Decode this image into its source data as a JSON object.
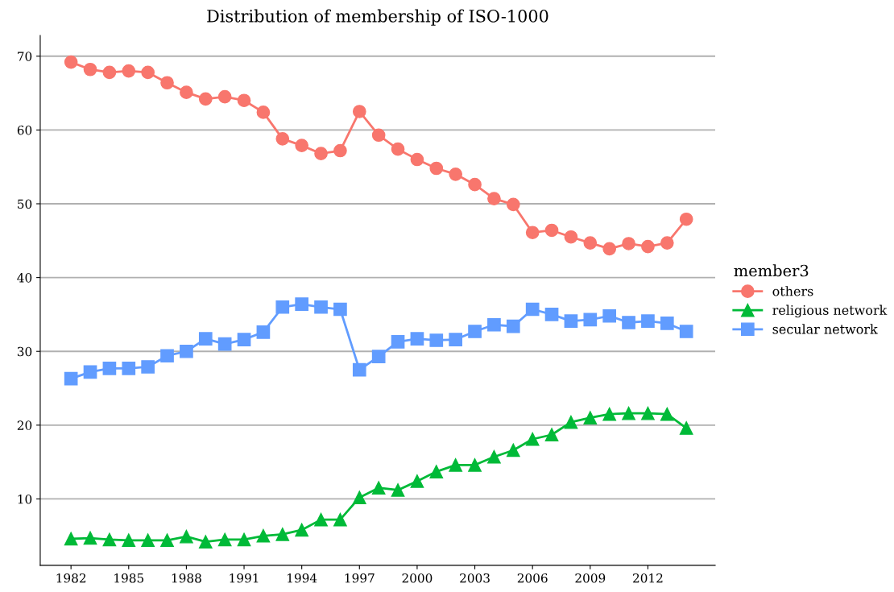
{
  "chart_data": {
    "type": "line",
    "title": "Distribution of membership of ISO-1000",
    "legend_title": "member3",
    "x": [
      1982,
      1983,
      1984,
      1985,
      1986,
      1987,
      1988,
      1989,
      1990,
      1991,
      1992,
      1993,
      1994,
      1995,
      1996,
      1997,
      1998,
      1999,
      2000,
      2001,
      2002,
      2003,
      2004,
      2005,
      2006,
      2007,
      2008,
      2009,
      2010,
      2011,
      2012,
      2013,
      2014
    ],
    "series": [
      {
        "name": "others",
        "color": "#f8766d",
        "marker": "circle",
        "values": [
          69.2,
          68.2,
          67.8,
          68.0,
          67.8,
          66.4,
          65.1,
          64.2,
          64.5,
          64.0,
          62.4,
          58.8,
          57.9,
          56.8,
          57.2,
          62.5,
          59.3,
          57.4,
          56.0,
          54.8,
          54.0,
          52.6,
          50.7,
          49.9,
          46.1,
          46.4,
          45.5,
          44.7,
          43.9,
          44.6,
          44.2,
          44.7,
          47.9
        ]
      },
      {
        "name": "religious network",
        "color": "#00ba38",
        "marker": "triangle",
        "values": [
          4.6,
          4.7,
          4.5,
          4.4,
          4.4,
          4.4,
          4.9,
          4.2,
          4.5,
          4.5,
          5.0,
          5.2,
          5.8,
          7.2,
          7.2,
          10.2,
          11.5,
          11.2,
          12.4,
          13.7,
          14.6,
          14.6,
          15.7,
          16.6,
          18.1,
          18.7,
          20.4,
          21.0,
          21.5,
          21.6,
          21.6,
          21.5,
          19.6
        ]
      },
      {
        "name": "secular network",
        "color": "#619cff",
        "marker": "square",
        "values": [
          26.3,
          27.2,
          27.7,
          27.7,
          27.9,
          29.4,
          30.0,
          31.7,
          31.0,
          31.6,
          32.6,
          36.0,
          36.4,
          36.0,
          35.7,
          27.5,
          29.3,
          31.3,
          31.7,
          31.5,
          31.6,
          32.7,
          33.6,
          33.4,
          35.7,
          35.0,
          34.1,
          34.3,
          34.8,
          33.9,
          34.1,
          33.8,
          32.7
        ]
      }
    ],
    "xlim": [
      1980.4,
      2015.5
    ],
    "xticks": [
      1982,
      1985,
      1988,
      1991,
      1994,
      1997,
      2000,
      2003,
      2006,
      2009,
      2012
    ],
    "ylim": [
      1,
      72.8
    ],
    "yticks": [
      10,
      20,
      30,
      40,
      50,
      60,
      70
    ],
    "grid": "y",
    "legend": "right",
    "line_style": "solid"
  }
}
